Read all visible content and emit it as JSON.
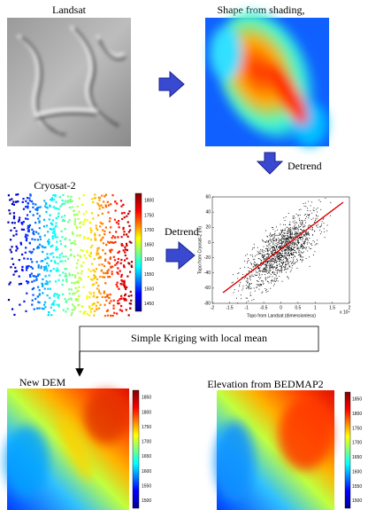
{
  "landsat": {
    "title": "Landsat"
  },
  "shading": {
    "title": "Shape from shading,"
  },
  "cryosat": {
    "title": "Cryosat-2",
    "colorbar_ticks": [
      1800,
      1750,
      1700,
      1650,
      1600,
      1550,
      1500,
      1450
    ]
  },
  "scatter": {
    "y_label": "Topo from Cryosat-2 (m)",
    "x_label": "Topo from Landsat (dimensionless)",
    "yticks": [
      60,
      40,
      20,
      0,
      -20,
      -40,
      -60,
      -80
    ],
    "xticks": [
      -2,
      -1.5,
      -1,
      -0.5,
      0,
      0.5,
      1,
      1.5,
      2
    ],
    "x_scale": "x 10⁴"
  },
  "flow": {
    "detrend_1": "Detrend",
    "detrend_2": "Detrend",
    "kriging": "Simple Kriging with local mean"
  },
  "new_dem": {
    "title": "New DEM",
    "colorbar_ticks": [
      1850,
      1800,
      1750,
      1700,
      1650,
      1600,
      1550,
      1500
    ]
  },
  "bedmap": {
    "title": "Elevation from BEDMAP2",
    "colorbar_ticks": [
      1850,
      1800,
      1750,
      1700,
      1650,
      1600,
      1550,
      1500
    ]
  }
}
